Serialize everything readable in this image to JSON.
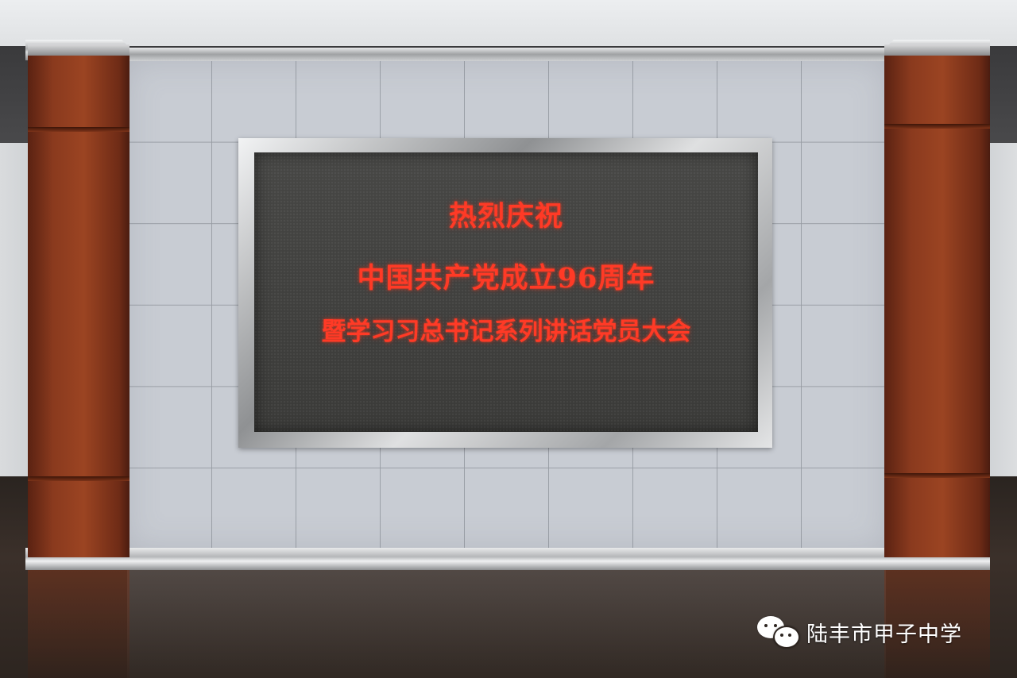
{
  "screen": {
    "line1": "热烈庆祝",
    "line2": "中国共产党成立96周年",
    "line3": "暨学习习总书记系列讲话党员大会"
  },
  "watermark": {
    "icon": "wechat-icon",
    "account_name": "陆丰市甲子中学"
  },
  "colors": {
    "led_text": "#ff3a26",
    "pillar_wood": "#8a3a1e",
    "tile_wall": "#c8ccd3"
  }
}
